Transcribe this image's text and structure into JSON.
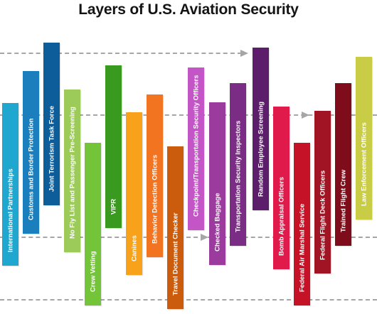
{
  "title": "Layers of U.S. Aviation Security",
  "layers": [
    {
      "label": "International Partnerships",
      "color": "#1fa7cf"
    },
    {
      "label": "Customs and Border Protection",
      "color": "#1b7fbe"
    },
    {
      "label": "Joint Terrorism Task Force",
      "color": "#0d5d9b"
    },
    {
      "label": "No Fly List and Passenger Pre-Screening",
      "color": "#9ccb5a"
    },
    {
      "label": "Crew Vetting",
      "color": "#74c43a"
    },
    {
      "label": "VIPR",
      "color": "#3a9a1f"
    },
    {
      "label": "Canines",
      "color": "#f7a21a"
    },
    {
      "label": "Behavior Detection Officers",
      "color": "#f27320"
    },
    {
      "label": "Travel Document Checker",
      "color": "#cc5c0d"
    },
    {
      "label": "Checkpoint/Transportation Security Officers",
      "color": "#c455c6"
    },
    {
      "label": "Checked Baggage",
      "color": "#9c3b9e"
    },
    {
      "label": "Transportation Security Inspectors",
      "color": "#7b2d85"
    },
    {
      "label": "Random Employee Screening",
      "color": "#5c1e6a"
    },
    {
      "label": "Bomb Appraisal Officers",
      "color": "#e01b4c"
    },
    {
      "label": "Federal Air Marshal Service",
      "color": "#c51227"
    },
    {
      "label": "Federal Flight Deck Officers",
      "color": "#a01424"
    },
    {
      "label": "Trained Flight Crew",
      "color": "#7e0c1a"
    },
    {
      "label": "Law Enforcement Officers",
      "color": "#c8cd45"
    }
  ]
}
